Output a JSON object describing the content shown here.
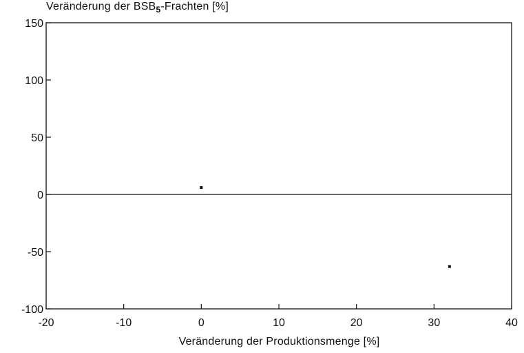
{
  "chart_data": {
    "type": "scatter",
    "ylabel": {
      "prefix": "Veränderung der BSB",
      "subscript": "5",
      "suffix": "-Frachten [%]"
    },
    "xlabel": "Veränderung der Produktionsmenge [%]",
    "xlim": [
      -20,
      40
    ],
    "ylim": [
      -100,
      150
    ],
    "xticks": [
      -20,
      -10,
      0,
      10,
      20,
      30,
      40
    ],
    "yticks": [
      150,
      100,
      50,
      0,
      -50,
      -100
    ],
    "xtick_labels": [
      "-20",
      "-10",
      "0",
      "10",
      "20",
      "30",
      "40"
    ],
    "ytick_labels": [
      "150",
      "100",
      "50",
      "0",
      "-50",
      "-100"
    ],
    "zero_line": true,
    "grid": false,
    "points": [
      {
        "x": 0,
        "y": 6
      },
      {
        "x": 32,
        "y": -63
      }
    ],
    "color": "#111111"
  }
}
